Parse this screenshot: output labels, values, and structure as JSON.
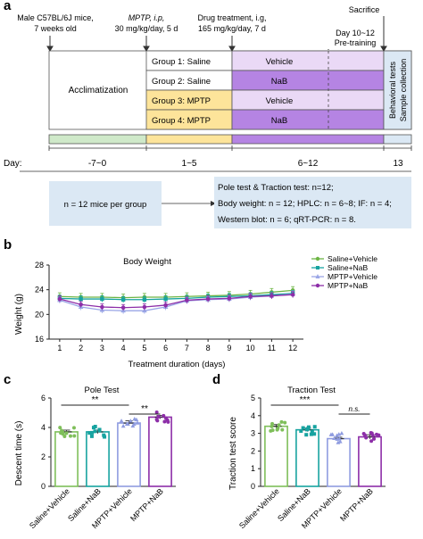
{
  "panels": {
    "a": "a",
    "b": "b",
    "c": "c",
    "d": "d"
  },
  "timeline": {
    "mice_info": [
      "Male C57BL/6J mice,",
      "7 weeks old"
    ],
    "mptp_info": [
      "MPTP, i.p,",
      "30 mg/kg/day, 5 d"
    ],
    "drug_info": [
      "Drug treatment, i.g,",
      "165 mg/kg/day, 7 d"
    ],
    "pretraining": [
      "Day 10~12",
      "Pre-training"
    ],
    "sacrifice": "Sacrifice",
    "acclimatization": "Acclimatization",
    "behavior_box": [
      "Behavioral tests",
      "Sample collection"
    ],
    "groups": [
      {
        "label": "Group 1: Saline",
        "treatment": "Vehicle"
      },
      {
        "label": "Group 2: Saline",
        "treatment": "NaB"
      },
      {
        "label": "Group 3: MPTP",
        "treatment": "Vehicle"
      },
      {
        "label": "Group 4: MPTP",
        "treatment": "NaB"
      }
    ],
    "day_title": "Day:",
    "days": [
      "-7~0",
      "1~5",
      "6~12",
      "13"
    ],
    "mice_per_group": "n = 12 mice per group",
    "assays": [
      "Pole test & Traction test: n=12;",
      "Body weight: n = 12; HPLC: n = 6~8;    IF: n = 4;",
      "Western blot: n = 6; qRT-PCR: n = 8."
    ],
    "colors": {
      "green": "#cfe9c9",
      "yellow": "#fde49a",
      "purple": "#b584e3",
      "lavender": "#ead9f6",
      "blue": "#dbe8f4"
    }
  },
  "chart_data": [
    {
      "type": "line",
      "title": "Body Weight",
      "xlabel": "Treatment duration (days)",
      "ylabel": "Weight (g)",
      "x": [
        1,
        2,
        3,
        4,
        5,
        6,
        7,
        8,
        9,
        10,
        11,
        12
      ],
      "xlim": [
        0.5,
        12.5
      ],
      "ylim": [
        16,
        28
      ],
      "yticks": [
        16,
        20,
        24,
        28
      ],
      "series": [
        {
          "name": "Saline+Vehicle",
          "color": "#6db544",
          "marker": "circle",
          "values": [
            22.9,
            22.8,
            22.8,
            22.7,
            22.8,
            22.8,
            22.9,
            23.0,
            23.1,
            23.3,
            23.6,
            23.9
          ],
          "err": 0.6
        },
        {
          "name": "Saline+NaB",
          "color": "#17a3a0",
          "marker": "square",
          "values": [
            22.6,
            22.5,
            22.5,
            22.4,
            22.4,
            22.5,
            22.6,
            22.8,
            22.9,
            23.0,
            23.2,
            23.4
          ],
          "err": 0.5
        },
        {
          "name": "MPTP+Vehicle",
          "color": "#9aa6e6",
          "marker": "triangle",
          "values": [
            22.3,
            21.2,
            20.7,
            20.6,
            20.6,
            21.2,
            22.2,
            22.4,
            22.5,
            22.8,
            23.0,
            23.3
          ],
          "err": 0.5
        },
        {
          "name": "MPTP+NaB",
          "color": "#8d2ea8",
          "marker": "circle",
          "values": [
            22.5,
            21.6,
            21.2,
            21.1,
            21.2,
            21.5,
            22.3,
            22.5,
            22.6,
            22.9,
            23.0,
            23.2
          ],
          "err": 0.5
        }
      ]
    },
    {
      "type": "bar",
      "title": "Pole Test",
      "ylabel": "Descent time (s)",
      "categories": [
        "Saline+Vehicle",
        "Saline+NaB",
        "MPTP+Vehicle",
        "MPTP+NaB"
      ],
      "values": [
        3.7,
        3.7,
        4.3,
        4.7
      ],
      "err": [
        0.12,
        0.12,
        0.15,
        0.12
      ],
      "ylim": [
        0,
        6
      ],
      "yticks": [
        0,
        2,
        4,
        6
      ],
      "colors": [
        "#7fbf5a",
        "#17a3a0",
        "#8f9ce0",
        "#8d2ea8"
      ],
      "annotations": [
        {
          "from": 0,
          "to": 2,
          "label": "**"
        },
        {
          "from": 2,
          "to": 3,
          "label": "**"
        }
      ]
    },
    {
      "type": "bar",
      "title": "Traction Test",
      "ylabel": "Traction test score",
      "categories": [
        "Saline+Vehicle",
        "Saline+NaB",
        "MPTP+Vehicle",
        "MPTP+NaB"
      ],
      "values": [
        3.4,
        3.2,
        2.7,
        2.8
      ],
      "err": [
        0.1,
        0.1,
        0.08,
        0.12
      ],
      "ylim": [
        0,
        5
      ],
      "yticks": [
        0,
        1,
        2,
        3,
        4,
        5
      ],
      "colors": [
        "#7fbf5a",
        "#17a3a0",
        "#8f9ce0",
        "#8d2ea8"
      ],
      "annotations": [
        {
          "from": 0,
          "to": 2,
          "label": "***"
        },
        {
          "from": 2,
          "to": 3,
          "label": "n.s."
        }
      ]
    }
  ]
}
